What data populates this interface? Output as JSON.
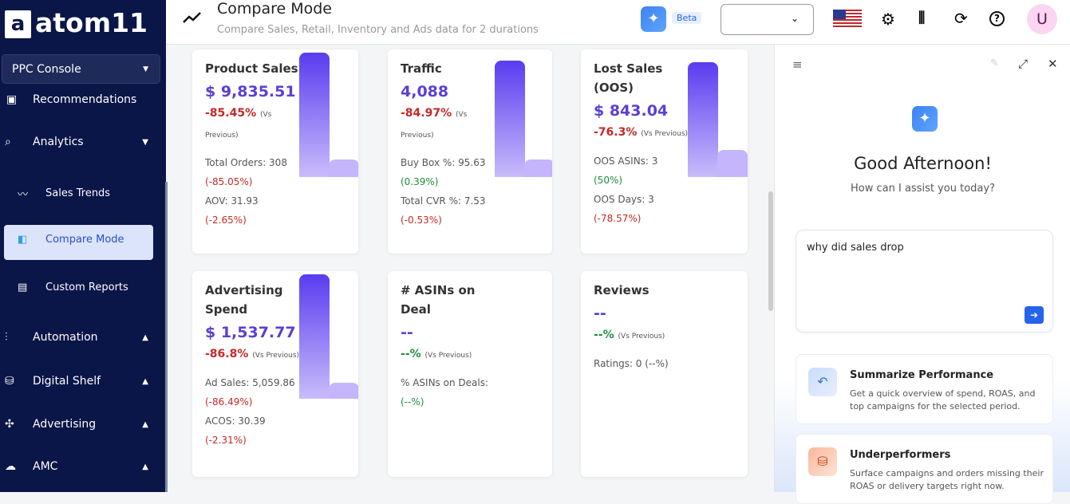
{
  "sidebar": {
    "logo": "atom11",
    "console": "PPC Console",
    "menu": [
      "Recommendations",
      "Analytics",
      "Sales Trends",
      "Compare Mode",
      "Custom Reports",
      "Automation",
      "Digital Shelf",
      "Advertising",
      "AMC"
    ]
  },
  "header": {
    "title": "Compare Mode",
    "subtitle": "Compare Sales, Retail, Inventory and Ads data for 2 durations",
    "badge": "Beta",
    "avatar": "U"
  },
  "cards": [
    {
      "title": "Product Sales",
      "value": "$ 9,835.51",
      "change": "-85.45%",
      "note": "(Vs Previous)",
      "details": [
        "Total Orders: 308",
        "(-85.05%)",
        "AOV: 31.93",
        "(-2.65%)"
      ]
    },
    {
      "title": "Traffic",
      "value": "4,088",
      "change": "-84.97%",
      "note": "(Vs Previous)",
      "details": [
        "Buy Box %: 95.63",
        "(0.39%)",
        "Total CVR %: 7.53",
        "(-0.53%)"
      ]
    },
    {
      "title": "Lost Sales (OOS)",
      "value": "$ 843.04",
      "change": "-76.3%",
      "note": "(Vs Previous)",
      "details": [
        "OOS ASINs: 3",
        "(50%)",
        "OOS Days: 3",
        "(-78.57%)"
      ]
    },
    {
      "title": "Advertising Spend",
      "value": "$ 1,537.77",
      "change": "-86.8%",
      "note": "(Vs Previous)",
      "details": [
        "Ad Sales: 5,059.86",
        "(-86.49%)",
        "ACOS: 30.39",
        "(-2.31%)"
      ]
    },
    {
      "title": "# ASINs on Deal",
      "value": "--",
      "change": "--%",
      "note": "(Vs Previous)",
      "details": [
        "% ASINs on Deals:",
        "(--%)"
      ]
    },
    {
      "title": "Reviews",
      "value": "--",
      "change": "--%",
      "note": "(Vs Previous)",
      "details": [
        "Ratings: 0 (--%)"
      ]
    }
  ],
  "assistant": {
    "greeting": "Good Afternoon!",
    "prompt": "How can I assist you today?",
    "input": "why did sales drop",
    "suggestions": [
      {
        "title": "Summarize Performance",
        "description": "Get a quick overview of spend, ROAS, and top campaigns for the selected period."
      },
      {
        "title": "Underperformers",
        "description": "Surface campaigns and orders missing their ROAS or delivery targets right now."
      }
    ]
  }
}
